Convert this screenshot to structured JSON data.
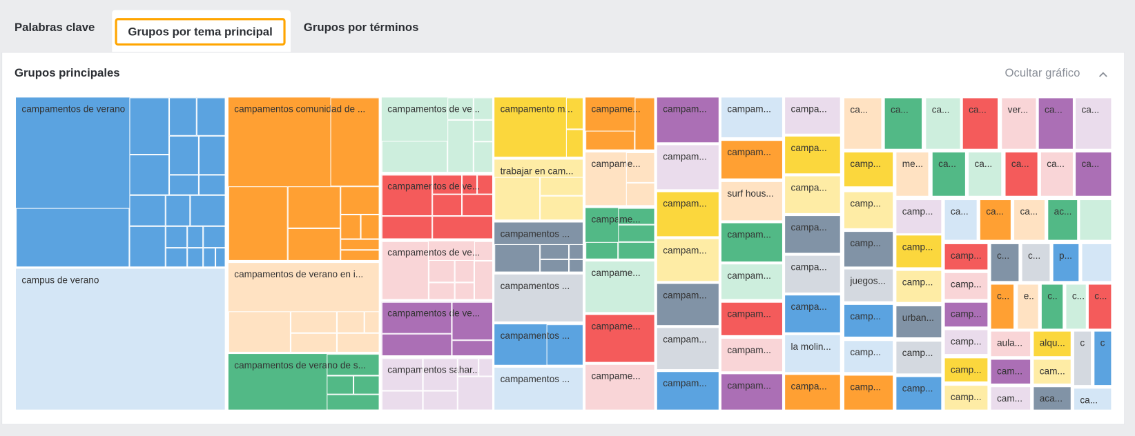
{
  "tabs": [
    {
      "label": "Palabras clave",
      "active": false
    },
    {
      "label": "Grupos por tema principal",
      "active": true
    },
    {
      "label": "Grupos por términos",
      "active": false
    }
  ],
  "panel": {
    "title": "Grupos principales",
    "toggle_label": "Ocultar gráfico",
    "toggle_icon": "chevron-up-icon"
  },
  "palette": {
    "blue": "#5ba3e0",
    "lightblue": "#d4e6f6",
    "orange": "#ffa033",
    "peach": "#ffe2c2",
    "green": "#52b986",
    "mint": "#cdeedd",
    "red": "#f45b5b",
    "pink": "#f9d5d7",
    "purple": "#ab6fb5",
    "lavender": "#eadcec",
    "yellow": "#fbd73d",
    "lightyellow": "#feeca5",
    "slate": "#8193a6",
    "lightgray": "#d4d9e0",
    "accent": "#ffa500"
  },
  "chart_data": {
    "type": "treemap",
    "title": "Grupos principales",
    "tiles": [
      {
        "label": "campamentos de verano",
        "color": "blue"
      },
      {
        "label": "campus de verano",
        "color": "lightblue"
      },
      {
        "label": "campamentos comunidad de ...",
        "color": "orange"
      },
      {
        "label": "campamentos de verano en i...",
        "color": "peach"
      },
      {
        "label": "campamentos de verano de s...",
        "color": "green"
      },
      {
        "label": "campamentos de ve...",
        "color": "mint"
      },
      {
        "label": "campamentos de ve...",
        "color": "red"
      },
      {
        "label": "campamentos de ve...",
        "color": "pink"
      },
      {
        "label": "campamentos de ve...",
        "color": "purple"
      },
      {
        "label": "campamentos sahar...",
        "color": "lavender"
      },
      {
        "label": "campamento m...",
        "color": "yellow"
      },
      {
        "label": "trabajar en cam...",
        "color": "lightyellow"
      },
      {
        "label": "campamentos ...",
        "color": "slate"
      },
      {
        "label": "campamentos ...",
        "color": "lightgray"
      },
      {
        "label": "campamentos ...",
        "color": "blue"
      },
      {
        "label": "campamentos ...",
        "color": "lightblue"
      },
      {
        "label": "campame...",
        "color": "orange"
      },
      {
        "label": "campame...",
        "color": "peach"
      },
      {
        "label": "campame...",
        "color": "green"
      },
      {
        "label": "campame...",
        "color": "mint"
      },
      {
        "label": "campame...",
        "color": "red"
      },
      {
        "label": "campame...",
        "color": "pink"
      },
      {
        "label": "campam...",
        "color": "purple"
      },
      {
        "label": "campam...",
        "color": "lavender"
      },
      {
        "label": "campam...",
        "color": "yellow"
      },
      {
        "label": "campam...",
        "color": "lightyellow"
      },
      {
        "label": "campam...",
        "color": "slate"
      },
      {
        "label": "campam...",
        "color": "lightgray"
      },
      {
        "label": "campam...",
        "color": "blue"
      },
      {
        "label": "campam...",
        "color": "lightblue"
      },
      {
        "label": "campam...",
        "color": "orange"
      },
      {
        "label": "surf hous...",
        "color": "peach"
      },
      {
        "label": "campam...",
        "color": "green"
      },
      {
        "label": "campam...",
        "color": "mint"
      },
      {
        "label": "campam...",
        "color": "red"
      },
      {
        "label": "campam...",
        "color": "pink"
      },
      {
        "label": "campam...",
        "color": "purple"
      },
      {
        "label": "campa...",
        "color": "lavender"
      },
      {
        "label": "campa...",
        "color": "yellow"
      },
      {
        "label": "campa...",
        "color": "lightyellow"
      },
      {
        "label": "campa...",
        "color": "slate"
      },
      {
        "label": "campa...",
        "color": "lightgray"
      },
      {
        "label": "campa...",
        "color": "blue"
      },
      {
        "label": "la molin...",
        "color": "lightblue"
      },
      {
        "label": "campa...",
        "color": "orange"
      },
      {
        "label": "ca...",
        "color": "peach"
      },
      {
        "label": "ca...",
        "color": "green"
      },
      {
        "label": "ca...",
        "color": "mint"
      },
      {
        "label": "ca...",
        "color": "red"
      },
      {
        "label": "ver...",
        "color": "pink"
      },
      {
        "label": "ca...",
        "color": "purple"
      },
      {
        "label": "ca...",
        "color": "lavender"
      },
      {
        "label": "camp...",
        "color": "yellow"
      },
      {
        "label": "camp...",
        "color": "lightyellow"
      },
      {
        "label": "camp...",
        "color": "slate"
      },
      {
        "label": "juegos...",
        "color": "lightgray"
      },
      {
        "label": "camp...",
        "color": "blue"
      },
      {
        "label": "camp...",
        "color": "lightblue"
      },
      {
        "label": "camp...",
        "color": "orange"
      },
      {
        "label": "me...",
        "color": "peach"
      },
      {
        "label": "ca...",
        "color": "green"
      },
      {
        "label": "ca...",
        "color": "mint"
      },
      {
        "label": "ca...",
        "color": "red"
      },
      {
        "label": "ca...",
        "color": "pink"
      },
      {
        "label": "ca...",
        "color": "purple"
      },
      {
        "label": "camp...",
        "color": "lavender"
      },
      {
        "label": "camp...",
        "color": "yellow"
      },
      {
        "label": "camp...",
        "color": "lightyellow"
      },
      {
        "label": "urban...",
        "color": "slate"
      },
      {
        "label": "camp...",
        "color": "lightgray"
      },
      {
        "label": "camp...",
        "color": "blue"
      },
      {
        "label": "ca...",
        "color": "lightblue"
      },
      {
        "label": "ca...",
        "color": "orange"
      },
      {
        "label": "ca...",
        "color": "peach"
      },
      {
        "label": "ac...",
        "color": "green"
      },
      {
        "label": "",
        "color": "mint"
      },
      {
        "label": "camp...",
        "color": "red"
      },
      {
        "label": "camp...",
        "color": "pink"
      },
      {
        "label": "camp...",
        "color": "purple"
      },
      {
        "label": "camp...",
        "color": "lavender"
      },
      {
        "label": "camp...",
        "color": "yellow"
      },
      {
        "label": "camp...",
        "color": "lightyellow"
      },
      {
        "label": "c...",
        "color": "slate"
      },
      {
        "label": "c...",
        "color": "lightgray"
      },
      {
        "label": "p...",
        "color": "blue"
      },
      {
        "label": "",
        "color": "lightblue"
      },
      {
        "label": "c...",
        "color": "orange"
      },
      {
        "label": "e..",
        "color": "peach"
      },
      {
        "label": "c..",
        "color": "green"
      },
      {
        "label": "c...",
        "color": "mint"
      },
      {
        "label": "c...",
        "color": "red"
      },
      {
        "label": "aula...",
        "color": "pink"
      },
      {
        "label": "alqu...",
        "color": "yellow"
      },
      {
        "label": "c",
        "color": "lightgray"
      },
      {
        "label": "c",
        "color": "blue"
      },
      {
        "label": "cam...",
        "color": "purple"
      },
      {
        "label": "cam...",
        "color": "lightyellow"
      },
      {
        "label": "cam...",
        "color": "lavender"
      },
      {
        "label": "aca...",
        "color": "slate"
      },
      {
        "label": "ca...",
        "color": "lightblue"
      }
    ]
  }
}
